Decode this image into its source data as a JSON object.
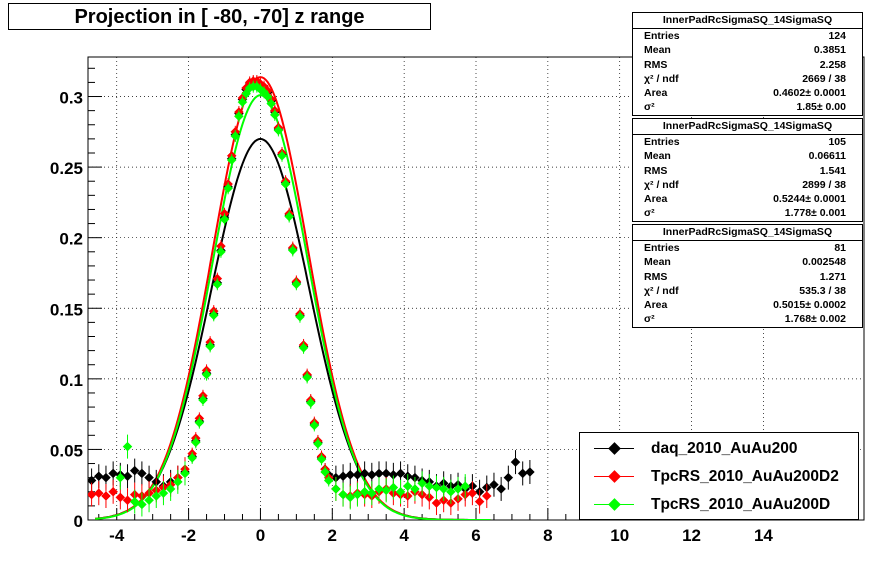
{
  "title": "Projection in [ -80, -70] z range",
  "stats": [
    {
      "name": "InnerPadRcSigmaSQ_14SigmaSQ",
      "rows": [
        {
          "k": "Entries",
          "v": "124"
        },
        {
          "k": "Mean",
          "v": "0.3851"
        },
        {
          "k": "RMS",
          "v": "2.258"
        },
        {
          "k": "χ² / ndf",
          "v": "2669 / 38"
        },
        {
          "k": "Area",
          "v": "0.4602± 0.0001"
        },
        {
          "k": "σ²",
          "v": "1.85± 0.00"
        }
      ]
    },
    {
      "name": "InnerPadRcSigmaSQ_14SigmaSQ",
      "rows": [
        {
          "k": "Entries",
          "v": "105"
        },
        {
          "k": "Mean",
          "v": "0.06611"
        },
        {
          "k": "RMS",
          "v": "1.541"
        },
        {
          "k": "χ² / ndf",
          "v": "2899 / 38"
        },
        {
          "k": "Area",
          "v": "0.5244± 0.0001"
        },
        {
          "k": "σ²",
          "v": "1.778± 0.001"
        }
      ]
    },
    {
      "name": "InnerPadRcSigmaSQ_14SigmaSQ",
      "rows": [
        {
          "k": "Entries",
          "v": "81"
        },
        {
          "k": "Mean",
          "v": "0.002548"
        },
        {
          "k": "RMS",
          "v": "1.271"
        },
        {
          "k": "χ² / ndf",
          "v": "535.3 / 38"
        },
        {
          "k": "Area",
          "v": "0.5015± 0.0002"
        },
        {
          "k": "σ²",
          "v": "1.768± 0.002"
        }
      ]
    }
  ],
  "legend": [
    {
      "label": "daq_2010_AuAu200",
      "color": "#000000"
    },
    {
      "label": "TpcRS_2010_AuAu200D2",
      "color": "#ff0000"
    },
    {
      "label": "TpcRS_2010_AuAu200D",
      "color": "#00ff00"
    }
  ],
  "chart_data": {
    "type": "scatter",
    "title": "Projection in [ -80, -70] z range",
    "xlim": [
      -4.8,
      16.8
    ],
    "ylim": [
      0,
      0.328
    ],
    "x_ticks": [
      -4,
      -2,
      0,
      2,
      4,
      6,
      8,
      10,
      12,
      14
    ],
    "y_ticks": [
      0,
      0.05,
      0.1,
      0.15,
      0.2,
      0.25,
      0.3
    ],
    "y_tick_labels": [
      "0",
      "0.05",
      "0.1",
      "0.15",
      "0.2",
      "0.25",
      "0.3"
    ],
    "grid": true,
    "legend_position": "bottom-right",
    "series": [
      {
        "name": "daq_2010_AuAu200",
        "color": "#000000",
        "fit": {
          "area": 0.4602,
          "sigma2": 1.85,
          "mean": 0.0
        },
        "x": [
          -4.7,
          -4.5,
          -4.3,
          -4.1,
          -3.9,
          -3.7,
          -3.5,
          -3.3,
          -3.1,
          -2.9,
          -2.7,
          -2.5,
          -2.3,
          -2.1,
          -1.9,
          -1.8,
          -1.7,
          -1.6,
          -1.5,
          -1.4,
          -1.3,
          -1.2,
          -1.1,
          -1.0,
          -0.9,
          -0.8,
          -0.7,
          -0.6,
          -0.5,
          -0.4,
          -0.3,
          -0.2,
          -0.1,
          0.0,
          0.1,
          0.2,
          0.3,
          0.4,
          0.5,
          0.6,
          0.7,
          0.8,
          0.9,
          1.0,
          1.1,
          1.2,
          1.3,
          1.4,
          1.5,
          1.6,
          1.7,
          1.8,
          1.9,
          2.1,
          2.3,
          2.5,
          2.7,
          2.9,
          3.1,
          3.3,
          3.5,
          3.7,
          3.9,
          4.1,
          4.3,
          4.5,
          4.7,
          4.9,
          5.1,
          5.3,
          5.5,
          5.7,
          5.9,
          6.1,
          6.3,
          6.5,
          6.7,
          6.9,
          7.1,
          7.3,
          7.5
        ],
        "y": [
          0.028,
          0.031,
          0.03,
          0.033,
          0.032,
          0.031,
          0.035,
          0.033,
          0.03,
          0.027,
          0.024,
          0.027,
          0.03,
          0.034,
          0.045,
          0.056,
          0.07,
          0.086,
          0.104,
          0.124,
          0.146,
          0.168,
          0.191,
          0.214,
          0.236,
          0.256,
          0.273,
          0.288,
          0.298,
          0.305,
          0.309,
          0.31,
          0.31,
          0.308,
          0.306,
          0.303,
          0.297,
          0.289,
          0.277,
          0.259,
          0.239,
          0.216,
          0.192,
          0.168,
          0.145,
          0.123,
          0.102,
          0.084,
          0.068,
          0.055,
          0.044,
          0.036,
          0.032,
          0.03,
          0.031,
          0.032,
          0.032,
          0.033,
          0.032,
          0.033,
          0.033,
          0.032,
          0.033,
          0.031,
          0.03,
          0.028,
          0.027,
          0.024,
          0.026,
          0.024,
          0.025,
          0.022,
          0.024,
          0.02,
          0.023,
          0.025,
          0.022,
          0.03,
          0.041,
          0.033,
          0.034
        ]
      },
      {
        "name": "TpcRS_2010_AuAu200D2",
        "color": "#ff0000",
        "fit": {
          "area": 0.5244,
          "sigma2": 1.778,
          "mean": 0.0
        },
        "x": [
          -4.7,
          -4.5,
          -4.3,
          -4.1,
          -3.9,
          -3.7,
          -3.5,
          -3.3,
          -3.1,
          -2.9,
          -2.7,
          -2.5,
          -2.3,
          -2.1,
          -1.9,
          -1.8,
          -1.7,
          -1.6,
          -1.5,
          -1.4,
          -1.3,
          -1.2,
          -1.1,
          -1.0,
          -0.9,
          -0.8,
          -0.7,
          -0.6,
          -0.5,
          -0.4,
          -0.3,
          -0.2,
          -0.1,
          0.0,
          0.1,
          0.2,
          0.3,
          0.4,
          0.5,
          0.6,
          0.7,
          0.8,
          0.9,
          1.0,
          1.1,
          1.2,
          1.3,
          1.4,
          1.5,
          1.6,
          1.7,
          1.8,
          1.9,
          2.1,
          2.3,
          2.5,
          2.7,
          2.9,
          3.1,
          3.3,
          3.5,
          3.7,
          3.9,
          4.1,
          4.3,
          4.5,
          4.7,
          4.9,
          5.1,
          5.3,
          5.5,
          5.7,
          5.9,
          6.1,
          6.3
        ],
        "y": [
          0.018,
          0.019,
          0.017,
          0.02,
          0.016,
          0.014,
          0.018,
          0.017,
          0.019,
          0.021,
          0.023,
          0.025,
          0.03,
          0.036,
          0.047,
          0.058,
          0.072,
          0.088,
          0.106,
          0.126,
          0.148,
          0.171,
          0.194,
          0.217,
          0.238,
          0.258,
          0.275,
          0.289,
          0.299,
          0.306,
          0.31,
          0.311,
          0.311,
          0.309,
          0.307,
          0.304,
          0.298,
          0.29,
          0.278,
          0.26,
          0.24,
          0.217,
          0.193,
          0.169,
          0.146,
          0.124,
          0.103,
          0.085,
          0.069,
          0.056,
          0.045,
          0.036,
          0.03,
          0.022,
          0.018,
          0.017,
          0.019,
          0.018,
          0.017,
          0.02,
          0.022,
          0.019,
          0.018,
          0.017,
          0.02,
          0.018,
          0.016,
          0.012,
          0.014,
          0.012,
          0.015,
          0.018,
          0.019,
          0.013,
          0.017
        ]
      },
      {
        "name": "TpcRS_2010_AuAu200D",
        "color": "#00ff00",
        "fit": {
          "area": 0.5015,
          "sigma2": 1.768,
          "mean": 0.0
        },
        "x": [
          -3.9,
          -3.7,
          -3.5,
          -3.3,
          -3.1,
          -2.9,
          -2.7,
          -2.5,
          -2.3,
          -2.1,
          -1.9,
          -1.8,
          -1.7,
          -1.6,
          -1.5,
          -1.4,
          -1.3,
          -1.2,
          -1.1,
          -1.0,
          -0.9,
          -0.8,
          -0.7,
          -0.6,
          -0.5,
          -0.4,
          -0.3,
          -0.2,
          -0.1,
          0.0,
          0.1,
          0.2,
          0.3,
          0.4,
          0.5,
          0.6,
          0.7,
          0.8,
          0.9,
          1.0,
          1.1,
          1.2,
          1.3,
          1.4,
          1.5,
          1.6,
          1.7,
          1.8,
          1.9,
          2.1,
          2.3,
          2.5,
          2.7,
          2.9,
          3.1,
          3.3,
          3.5,
          3.7,
          3.9,
          4.1,
          4.3,
          4.5,
          4.7,
          4.9,
          5.1,
          5.3,
          5.5,
          5.7
        ],
        "y": [
          0.03,
          0.052,
          0.013,
          0.011,
          0.014,
          0.017,
          0.019,
          0.022,
          0.027,
          0.033,
          0.044,
          0.055,
          0.069,
          0.085,
          0.103,
          0.123,
          0.145,
          0.167,
          0.19,
          0.213,
          0.235,
          0.255,
          0.272,
          0.286,
          0.296,
          0.302,
          0.306,
          0.307,
          0.307,
          0.305,
          0.303,
          0.3,
          0.295,
          0.287,
          0.276,
          0.258,
          0.238,
          0.215,
          0.191,
          0.167,
          0.144,
          0.122,
          0.101,
          0.083,
          0.067,
          0.054,
          0.043,
          0.034,
          0.028,
          0.022,
          0.018,
          0.016,
          0.018,
          0.02,
          0.019,
          0.022,
          0.021,
          0.023,
          0.02,
          0.024,
          0.022,
          0.026,
          0.024,
          0.023,
          0.022,
          0.02,
          0.022,
          0.024
        ]
      }
    ]
  }
}
